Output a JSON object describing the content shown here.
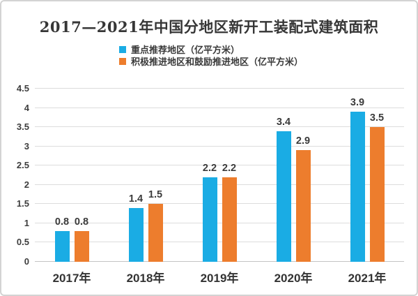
{
  "page": {
    "background": "#ffffff",
    "border_color": "#d3d3d3"
  },
  "chart_data": {
    "type": "bar",
    "title": "2017—2021年中国分地区新开工装配式建筑面积",
    "categories": [
      "2017年",
      "2018年",
      "2019年",
      "2020年",
      "2021年"
    ],
    "series": [
      {
        "name": "重点推荐地区（亿平方米）",
        "color": "#1aace4",
        "values": [
          0.8,
          1.4,
          2.2,
          3.4,
          3.9
        ]
      },
      {
        "name": "积极推进地区和鼓励推进地区（亿平方米）",
        "color": "#ed7d2d",
        "values": [
          0.8,
          1.5,
          2.2,
          2.9,
          3.5
        ]
      }
    ],
    "xlabel": "",
    "ylabel": "",
    "ylim": [
      0,
      4.5
    ],
    "ytick_step": 0.5,
    "yticks": [
      "0",
      "0.5",
      "1",
      "1.5",
      "2",
      "2.5",
      "3",
      "3.5",
      "4",
      "4.5"
    ],
    "grid": true,
    "gridline_color": "#dcdcdc",
    "axis_line_color": "#c4c4c4",
    "text_color": "#3b3b3b",
    "legend_position": "top-center-under-title",
    "value_labels": true
  }
}
